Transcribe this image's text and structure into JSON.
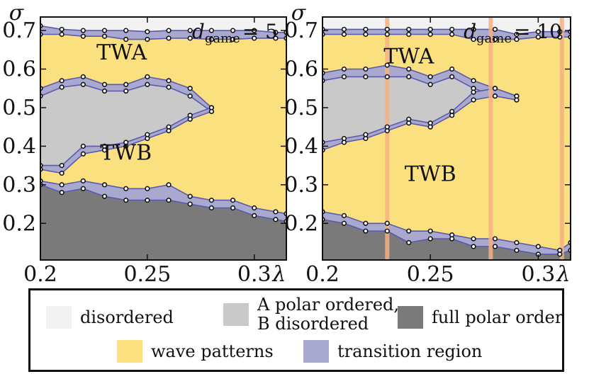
{
  "colors": {
    "disordered": "#f2f2f2",
    "a_polar": "#c9c9c9",
    "full_polar": "#7a7a7a",
    "wave": "#fbe07f",
    "transition": "#a9a9cf",
    "transition_edge": "#5a58b0",
    "marker_line": "#f4b183"
  },
  "legend": {
    "disordered": "disordered",
    "a_polar_line1": "A polar ordered,",
    "a_polar_line2": "B disordered",
    "full_polar": "full polar order",
    "wave": "wave patterns",
    "transition": "transition region"
  },
  "chart_data": [
    {
      "type": "area",
      "param_label": "d",
      "param_subscript": "game",
      "param_value": "= 5",
      "xlabel": "λ",
      "ylabel": "σ",
      "xlim": [
        0.2,
        0.315
      ],
      "ylim": [
        0.105,
        0.735
      ],
      "xticks": [
        0.2,
        0.25,
        0.3
      ],
      "xtick_labels": [
        "0.2",
        "0.25",
        "0.3"
      ],
      "yticks": [
        0.2,
        0.3,
        0.4,
        0.5,
        0.6,
        0.7
      ],
      "ytick_labels": [
        "0.2",
        "0.3",
        "0.4",
        "0.5",
        "0.6",
        "0.7"
      ],
      "region_labels": [
        {
          "text": "TWA",
          "x": 0.238,
          "y": 0.625
        },
        {
          "text": "TWB",
          "x": 0.24,
          "y": 0.365
        }
      ],
      "bands": {
        "top": {
          "x": [
            0.2,
            0.21,
            0.22,
            0.23,
            0.24,
            0.25,
            0.26,
            0.27,
            0.28,
            0.29,
            0.3,
            0.31,
            0.315
          ],
          "upper": [
            0.712,
            0.703,
            0.7,
            0.7,
            0.7,
            0.697,
            0.7,
            0.7,
            0.7,
            0.7,
            0.7,
            0.695,
            0.695
          ],
          "lower": [
            0.69,
            0.69,
            0.685,
            0.685,
            0.677,
            0.677,
            0.68,
            0.68,
            0.677,
            0.677,
            0.68,
            0.68,
            0.68
          ]
        },
        "apolar_upper": {
          "x": [
            0.2,
            0.21,
            0.22,
            0.23,
            0.24,
            0.25,
            0.26,
            0.27,
            0.28
          ],
          "upper": [
            0.55,
            0.57,
            0.58,
            0.56,
            0.56,
            0.58,
            0.57,
            0.55,
            0.5
          ],
          "lower": [
            0.53,
            0.553,
            0.56,
            0.543,
            0.543,
            0.56,
            0.553,
            0.53,
            0.49
          ]
        },
        "apolar_lower": {
          "x": [
            0.2,
            0.21,
            0.22,
            0.23,
            0.24,
            0.25,
            0.26,
            0.27,
            0.28
          ],
          "upper": [
            0.35,
            0.35,
            0.4,
            0.4,
            0.41,
            0.43,
            0.45,
            0.48,
            0.5
          ],
          "lower": [
            0.34,
            0.33,
            0.38,
            0.39,
            0.4,
            0.42,
            0.44,
            0.47,
            0.49
          ]
        },
        "bottom": {
          "x": [
            0.2,
            0.21,
            0.22,
            0.23,
            0.24,
            0.25,
            0.26,
            0.27,
            0.28,
            0.29,
            0.3,
            0.31,
            0.315
          ],
          "upper": [
            0.31,
            0.3,
            0.31,
            0.3,
            0.29,
            0.29,
            0.3,
            0.27,
            0.26,
            0.26,
            0.24,
            0.23,
            0.225
          ],
          "lower": [
            0.3,
            0.28,
            0.29,
            0.27,
            0.26,
            0.26,
            0.26,
            0.25,
            0.24,
            0.24,
            0.22,
            0.21,
            0.205
          ]
        }
      },
      "marker_lines": []
    },
    {
      "type": "area",
      "param_label": "d",
      "param_subscript": "game",
      "param_value": "= 10",
      "xlabel": "λ",
      "ylabel": "σ",
      "xlim": [
        0.2,
        0.315
      ],
      "ylim": [
        0.105,
        0.735
      ],
      "xticks": [
        0.2,
        0.25,
        0.3
      ],
      "xtick_labels": [
        "0.2",
        "0.25",
        "0.3"
      ],
      "yticks": [
        0.2,
        0.3,
        0.4,
        0.5,
        0.6,
        0.7
      ],
      "ytick_labels": [
        "0.2",
        "0.3",
        "0.4",
        "0.5",
        "0.6",
        "0.7"
      ],
      "region_labels": [
        {
          "text": "TWA",
          "x": 0.24,
          "y": 0.615
        },
        {
          "text": "TWB",
          "x": 0.25,
          "y": 0.31
        }
      ],
      "bands": {
        "top": {
          "x": [
            0.2,
            0.21,
            0.22,
            0.23,
            0.24,
            0.25,
            0.26,
            0.27,
            0.28,
            0.29,
            0.3,
            0.31,
            0.315
          ],
          "upper": [
            0.703,
            0.703,
            0.703,
            0.703,
            0.703,
            0.703,
            0.703,
            0.703,
            0.703,
            0.69,
            0.697,
            0.697,
            0.697
          ],
          "lower": [
            0.69,
            0.69,
            0.69,
            0.69,
            0.69,
            0.69,
            0.69,
            0.677,
            0.677,
            0.677,
            0.683,
            0.683,
            0.683
          ]
        },
        "apolar_upper": {
          "x": [
            0.2,
            0.21,
            0.22,
            0.23,
            0.24,
            0.25,
            0.26,
            0.27,
            0.28,
            0.29
          ],
          "upper": [
            0.59,
            0.6,
            0.6,
            0.61,
            0.6,
            0.58,
            0.6,
            0.57,
            0.55,
            0.53
          ],
          "lower": [
            0.57,
            0.58,
            0.58,
            0.58,
            0.58,
            0.56,
            0.58,
            0.55,
            0.53,
            0.52
          ]
        },
        "apolar_lower": {
          "x": [
            0.2,
            0.21,
            0.22,
            0.23,
            0.24,
            0.25,
            0.26,
            0.27,
            0.28,
            0.29
          ],
          "upper": [
            0.41,
            0.42,
            0.43,
            0.45,
            0.47,
            0.46,
            0.49,
            0.54,
            0.55,
            0.53
          ],
          "lower": [
            0.39,
            0.41,
            0.42,
            0.44,
            0.46,
            0.45,
            0.48,
            0.52,
            0.53,
            0.52
          ]
        },
        "bottom": {
          "x": [
            0.2,
            0.21,
            0.22,
            0.23,
            0.24,
            0.25,
            0.26,
            0.27,
            0.28,
            0.29,
            0.3,
            0.31,
            0.315
          ],
          "upper": [
            0.23,
            0.22,
            0.2,
            0.2,
            0.18,
            0.18,
            0.17,
            0.16,
            0.16,
            0.15,
            0.14,
            0.13,
            0.15
          ],
          "lower": [
            0.21,
            0.2,
            0.18,
            0.18,
            0.15,
            0.16,
            0.16,
            0.14,
            0.14,
            0.13,
            0.12,
            0.12,
            0.13
          ]
        }
      },
      "marker_lines": [
        0.23,
        0.278,
        0.311
      ]
    }
  ]
}
